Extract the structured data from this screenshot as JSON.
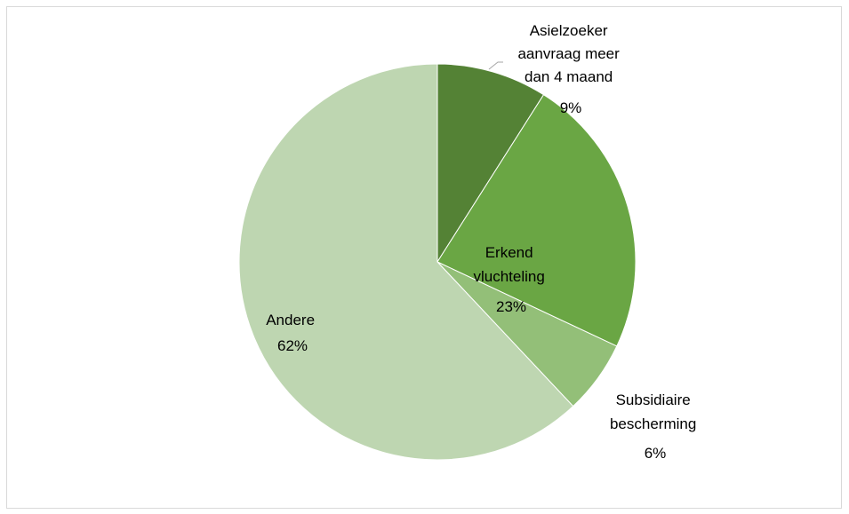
{
  "chart_data": {
    "type": "pie",
    "start_angle_deg": 0,
    "direction": "clockwise",
    "slices": [
      {
        "name": "Asielzoeker aanvraag meer dan 4 maand",
        "value": 9,
        "label_lines": [
          "Asielzoeker",
          "aanvraag meer",
          "dan 4 maand"
        ],
        "pct_label": "9%",
        "color": "#548235"
      },
      {
        "name": "Erkend vluchteling",
        "value": 23,
        "label_lines": [
          "Erkend",
          "vluchteling"
        ],
        "pct_label": "23%",
        "color": "#6aa644"
      },
      {
        "name": "Subsidiaire bescherming",
        "value": 6,
        "label_lines": [
          "Subsidiaire",
          "bescherming"
        ],
        "pct_label": "6%",
        "color": "#93bf78"
      },
      {
        "name": "Andere",
        "value": 62,
        "label_lines": [
          "Andere"
        ],
        "pct_label": "62%",
        "color": "#bed6b1"
      }
    ],
    "legend": "none",
    "title": ""
  }
}
